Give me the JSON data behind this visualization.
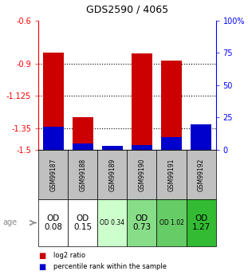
{
  "title": "GDS2590 / 4065",
  "samples": [
    "GSM99187",
    "GSM99188",
    "GSM99189",
    "GSM99190",
    "GSM99191",
    "GSM99192"
  ],
  "log2_ratios": [
    -0.82,
    -1.27,
    -1.5,
    -0.83,
    -0.88,
    -1.48
  ],
  "percentile_ranks": [
    18,
    5,
    3,
    4,
    10,
    20
  ],
  "ylim_left": [
    -1.5,
    -0.6
  ],
  "yticks_left": [
    -1.5,
    -1.35,
    -1.125,
    -0.9,
    -0.6
  ],
  "yticks_right": [
    0,
    25,
    50,
    75,
    100
  ],
  "ylim_right": [
    0,
    100
  ],
  "bar_color_red": "#cc0000",
  "bar_color_blue": "#0000cc",
  "sample_bg_color": "#c0c0c0",
  "age_labels": [
    "OD\n0.08",
    "OD\n0.15",
    "OD 0.34",
    "OD\n0.73",
    "OD 1.02",
    "OD\n1.27"
  ],
  "age_bg_colors": [
    "#ffffff",
    "#ffffff",
    "#ccffcc",
    "#88dd88",
    "#66cc66",
    "#33bb33"
  ],
  "age_fontsize_large": [
    true,
    true,
    false,
    true,
    false,
    true
  ],
  "legend_red": "log2 ratio",
  "legend_blue": "percentile rank within the sample",
  "age_label": "age"
}
